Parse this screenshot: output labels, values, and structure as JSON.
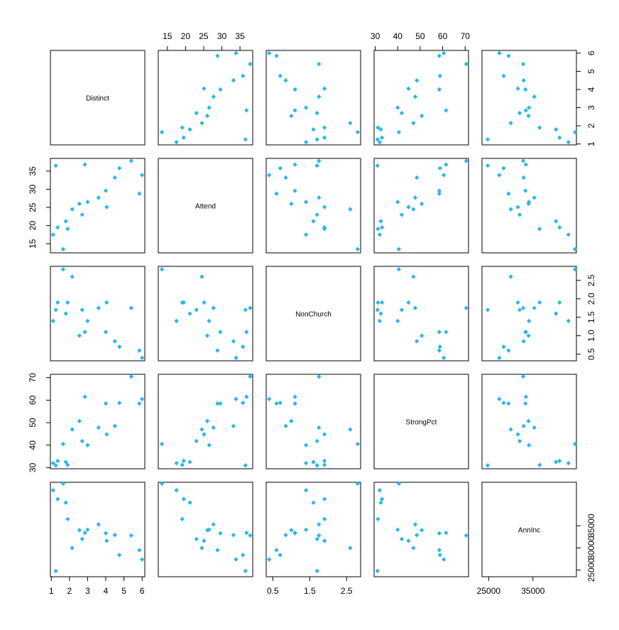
{
  "chart_data": {
    "type": "scatter",
    "variables": [
      "Distinct",
      "Attend",
      "NonChurch",
      "StrongPct",
      "AnnInc"
    ],
    "point_color": "#29b8e8",
    "point_shape": "diamond",
    "axes": [
      {
        "name": "Distinct",
        "range": [
          0.95,
          6.15
        ],
        "ticks": [
          1,
          2,
          3,
          4,
          5,
          6
        ],
        "tick_labels": [
          "1",
          "2",
          "3",
          "4",
          "5",
          "6"
        ]
      },
      {
        "name": "Attend",
        "range": [
          12.5,
          38.5
        ],
        "ticks": [
          15,
          20,
          25,
          30,
          35
        ],
        "tick_labels": [
          "15",
          "20",
          "25",
          "30",
          "35"
        ]
      },
      {
        "name": "NonChurch",
        "range": [
          0.32,
          2.88
        ],
        "ticks": [
          0.5,
          1.5,
          2.5
        ],
        "tick_labels": [
          "0.5",
          "1.5",
          "2.5"
        ]
      },
      {
        "name": "StrongPct",
        "range": [
          29.5,
          71.5
        ],
        "ticks": [
          30,
          40,
          50,
          60,
          70
        ],
        "tick_labels": [
          "30",
          "40",
          "50",
          "60",
          "70"
        ]
      },
      {
        "name": "AnnInc",
        "range": [
          23500,
          44800
        ],
        "ticks": [
          25000,
          35000
        ],
        "tick_labels": [
          "25000",
          "35000"
        ]
      }
    ],
    "tick_labels_extra": {
      "Attend_right": [
        "15",
        "20",
        "25",
        "30",
        "35"
      ],
      "NonChurch_right": [
        "0.5",
        "1.0",
        "1.5",
        "2.0",
        "2.5"
      ],
      "AnnInc_right": [
        "25000",
        "30000",
        "35000"
      ]
    },
    "observations": [
      {
        "Distinct": 1.25,
        "Attend": 36.5,
        "NonChurch": 1.7,
        "StrongPct": 31.0,
        "AnnInc": 24800
      },
      {
        "Distinct": 1.1,
        "Attend": 17.5,
        "NonChurch": 1.4,
        "StrongPct": 32.0,
        "AnnInc": 43000
      },
      {
        "Distinct": 1.35,
        "Attend": 19.5,
        "NonChurch": 1.9,
        "StrongPct": 33.0,
        "AnnInc": 41000
      },
      {
        "Distinct": 1.65,
        "Attend": 13.5,
        "NonChurch": 2.8,
        "StrongPct": 40.5,
        "AnnInc": 44500
      },
      {
        "Distinct": 1.8,
        "Attend": 21.2,
        "NonChurch": 1.6,
        "StrongPct": 32.5,
        "AnnInc": 40200
      },
      {
        "Distinct": 1.9,
        "Attend": 19.1,
        "NonChurch": 1.9,
        "StrongPct": 31.2,
        "AnnInc": 36500
      },
      {
        "Distinct": 2.15,
        "Attend": 24.5,
        "NonChurch": 2.6,
        "StrongPct": 47.0,
        "AnnInc": 30000
      },
      {
        "Distinct": 2.55,
        "Attend": 26.0,
        "NonChurch": 1.0,
        "StrongPct": 50.7,
        "AnnInc": 34000
      },
      {
        "Distinct": 2.7,
        "Attend": 23.0,
        "NonChurch": 1.7,
        "StrongPct": 41.8,
        "AnnInc": 32000
      },
      {
        "Distinct": 2.85,
        "Attend": 36.8,
        "NonChurch": 1.1,
        "StrongPct": 61.5,
        "AnnInc": 33400
      },
      {
        "Distinct": 3.0,
        "Attend": 26.5,
        "NonChurch": 1.4,
        "StrongPct": 40.0,
        "AnnInc": 34100
      },
      {
        "Distinct": 3.6,
        "Attend": 27.7,
        "NonChurch": 1.75,
        "StrongPct": 47.8,
        "AnnInc": 35300
      },
      {
        "Distinct": 4.0,
        "Attend": 29.6,
        "NonChurch": 1.1,
        "StrongPct": 58.5,
        "AnnInc": 33300
      },
      {
        "Distinct": 4.05,
        "Attend": 25.1,
        "NonChurch": 1.9,
        "StrongPct": 44.8,
        "AnnInc": 31600
      },
      {
        "Distinct": 4.5,
        "Attend": 33.2,
        "NonChurch": 0.85,
        "StrongPct": 48.5,
        "AnnInc": 32900
      },
      {
        "Distinct": 4.75,
        "Attend": 35.8,
        "NonChurch": 0.7,
        "StrongPct": 58.8,
        "AnnInc": 28400
      },
      {
        "Distinct": 5.4,
        "Attend": 37.8,
        "NonChurch": 1.75,
        "StrongPct": 70.5,
        "AnnInc": 32800
      },
      {
        "Distinct": 5.85,
        "Attend": 28.8,
        "NonChurch": 0.6,
        "StrongPct": 58.5,
        "AnnInc": 29500
      },
      {
        "Distinct": 6.0,
        "Attend": 33.9,
        "NonChurch": 0.4,
        "StrongPct": 60.5,
        "AnnInc": 27400
      }
    ]
  }
}
